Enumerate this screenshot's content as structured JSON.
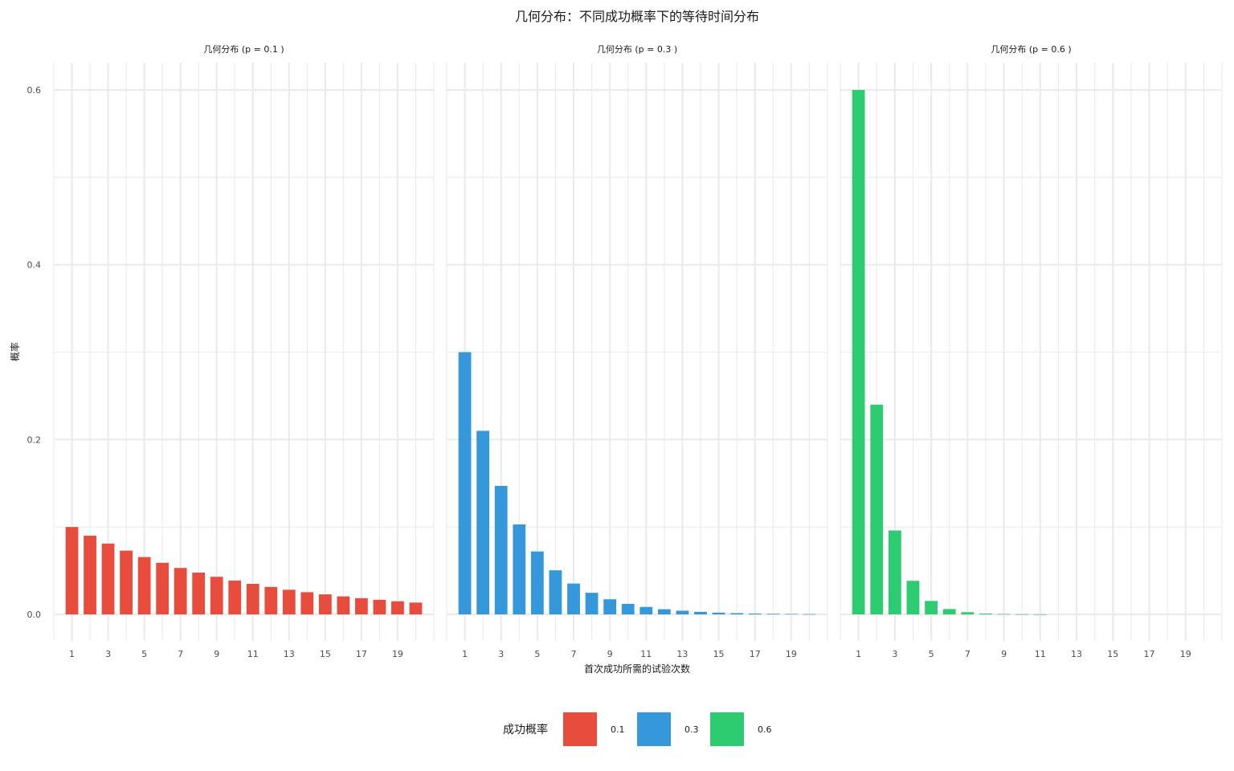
{
  "chart_data": {
    "type": "bar",
    "title": "几何分布：不同成功概率下的等待时间分布",
    "xlabel": "首次成功所需的试验次数",
    "ylabel": "概率",
    "x": [
      1,
      2,
      3,
      4,
      5,
      6,
      7,
      8,
      9,
      10,
      11,
      12,
      13,
      14,
      15,
      16,
      17,
      18,
      19,
      20
    ],
    "x_tick_labels": [
      "1",
      "3",
      "5",
      "7",
      "9",
      "11",
      "13",
      "15",
      "17",
      "19"
    ],
    "x_tick_values": [
      1,
      3,
      5,
      7,
      9,
      11,
      13,
      15,
      17,
      19
    ],
    "xlim": [
      0,
      21
    ],
    "ylim": [
      0,
      0.6
    ],
    "y_tick_values": [
      0.0,
      0.2,
      0.4,
      0.6
    ],
    "y_tick_labels": [
      "0.0",
      "0.2",
      "0.4",
      "0.6"
    ],
    "grid": true,
    "legend": {
      "title": "成功概率",
      "placement": "bottom",
      "entries": [
        {
          "label": "0.1",
          "color": "#e74c3c"
        },
        {
          "label": "0.3",
          "color": "#3498db"
        },
        {
          "label": "0.6",
          "color": "#2ecc71"
        }
      ]
    },
    "panels": [
      {
        "strip_label": "几何分布 (p = 0.1 )",
        "color": "#e74c3c",
        "values": [
          0.1,
          0.09,
          0.081,
          0.0729,
          0.0656,
          0.059,
          0.0531,
          0.0478,
          0.043,
          0.0387,
          0.0349,
          0.0314,
          0.0282,
          0.0254,
          0.0229,
          0.0206,
          0.0185,
          0.0167,
          0.015,
          0.0135
        ]
      },
      {
        "strip_label": "几何分布 (p = 0.3 )",
        "color": "#3498db",
        "values": [
          0.3,
          0.21,
          0.147,
          0.1029,
          0.072,
          0.0504,
          0.0353,
          0.0247,
          0.0173,
          0.0121,
          0.0085,
          0.0059,
          0.0042,
          0.0029,
          0.002,
          0.0014,
          0.001,
          0.0007,
          0.0005,
          0.0003
        ]
      },
      {
        "strip_label": "几何分布 (p = 0.6 )",
        "color": "#2ecc71",
        "values": [
          0.6,
          0.24,
          0.096,
          0.0384,
          0.0154,
          0.0061,
          0.0025,
          0.001,
          0.0004,
          0.0002,
          0.0001,
          0,
          0,
          0,
          0,
          0,
          0,
          0,
          0,
          0
        ]
      }
    ]
  }
}
